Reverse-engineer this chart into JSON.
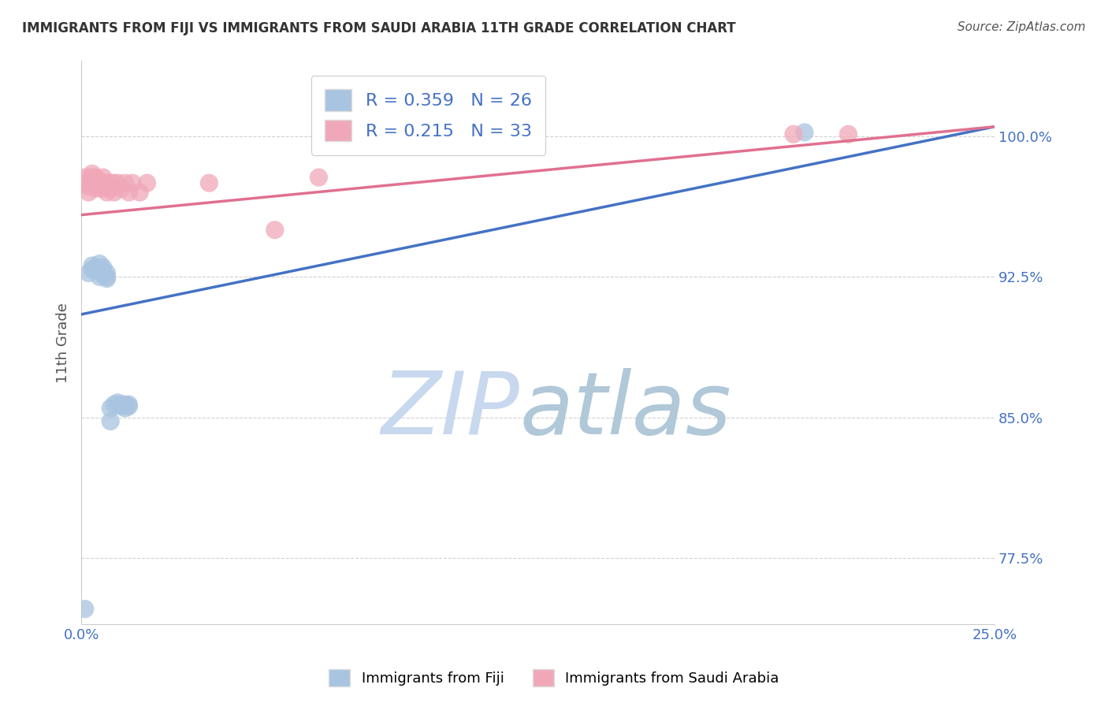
{
  "title": "IMMIGRANTS FROM FIJI VS IMMIGRANTS FROM SAUDI ARABIA 11TH GRADE CORRELATION CHART",
  "source": "Source: ZipAtlas.com",
  "ylabel": "11th Grade",
  "xlim": [
    0.0,
    0.25
  ],
  "ylim": [
    0.74,
    1.04
  ],
  "x_ticks": [
    0.0,
    0.05,
    0.1,
    0.15,
    0.2,
    0.25
  ],
  "y_ticks": [
    0.775,
    0.85,
    0.925,
    1.0
  ],
  "y_tick_labels": [
    "77.5%",
    "85.0%",
    "92.5%",
    "100.0%"
  ],
  "fiji_R": 0.359,
  "fiji_N": 26,
  "saudi_R": 0.215,
  "saudi_N": 33,
  "fiji_color": "#a8c4e0",
  "saudi_color": "#f0a8b8",
  "fiji_line_color": "#4472c4",
  "saudi_line_color": "#e07090",
  "watermark_zip": "ZIP",
  "watermark_atlas": "atlas",
  "watermark_color_zip": "#c8d8ee",
  "watermark_color_atlas": "#b0c8d8",
  "fiji_x": [
    0.001,
    0.002,
    0.003,
    0.003,
    0.004,
    0.004,
    0.005,
    0.005,
    0.006,
    0.006,
    0.006,
    0.007,
    0.007,
    0.007,
    0.008,
    0.008,
    0.009,
    0.01,
    0.011,
    0.011,
    0.012,
    0.012,
    0.013,
    0.013,
    0.198,
    0.005
  ],
  "fiji_y": [
    0.748,
    0.927,
    0.929,
    0.931,
    0.93,
    0.929,
    0.932,
    0.928,
    0.93,
    0.928,
    0.926,
    0.927,
    0.924,
    0.925,
    0.855,
    0.848,
    0.857,
    0.858,
    0.857,
    0.856,
    0.857,
    0.855,
    0.856,
    0.857,
    1.002,
    0.925
  ],
  "saudi_x": [
    0.001,
    0.001,
    0.002,
    0.002,
    0.003,
    0.003,
    0.003,
    0.004,
    0.004,
    0.004,
    0.005,
    0.005,
    0.006,
    0.006,
    0.006,
    0.007,
    0.007,
    0.008,
    0.008,
    0.009,
    0.009,
    0.01,
    0.011,
    0.012,
    0.013,
    0.014,
    0.016,
    0.018,
    0.035,
    0.053,
    0.065,
    0.195,
    0.21
  ],
  "saudi_y": [
    0.978,
    0.975,
    0.973,
    0.97,
    0.98,
    0.978,
    0.976,
    0.978,
    0.975,
    0.972,
    0.976,
    0.973,
    0.978,
    0.975,
    0.972,
    0.975,
    0.97,
    0.975,
    0.972,
    0.975,
    0.97,
    0.975,
    0.972,
    0.975,
    0.97,
    0.975,
    0.97,
    0.975,
    0.975,
    0.95,
    0.978,
    1.001,
    1.001
  ],
  "background_color": "#ffffff",
  "grid_color": "#cccccc",
  "tick_color": "#4472c4",
  "legend_fontsize": 16,
  "title_fontsize": 12
}
